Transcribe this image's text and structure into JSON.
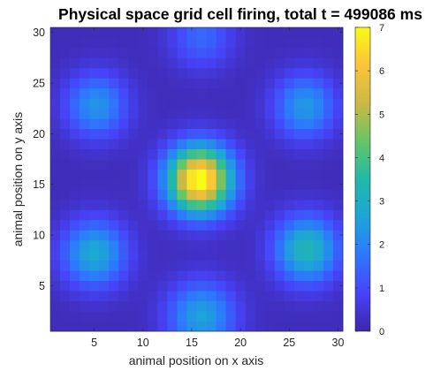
{
  "chart_data": {
    "type": "heatmap",
    "title": "Physical space grid cell firing, total t = 499086 ms",
    "xlabel": "animal position on x axis",
    "ylabel": "animal position on y axis",
    "x_ticks": [
      5,
      10,
      15,
      20,
      25,
      30
    ],
    "y_ticks": [
      5,
      10,
      15,
      20,
      25,
      30
    ],
    "xlim": [
      0.5,
      30.5
    ],
    "ylim": [
      0.5,
      30.5
    ],
    "y_direction": "normal",
    "grid_size": [
      30,
      30
    ],
    "colormap": "parula",
    "colorbar": {
      "limits": [
        0,
        7
      ],
      "ticks": [
        0,
        1,
        2,
        3,
        4,
        5,
        6,
        7
      ]
    },
    "baseline_value": 0.2,
    "firing_fields": [
      {
        "x": 15.8,
        "y": 15.5,
        "peak": 7.0,
        "sigma": 2.3
      },
      {
        "x": 5.2,
        "y": 22.8,
        "peak": 2.1,
        "sigma": 2.2
      },
      {
        "x": 26.6,
        "y": 22.7,
        "peak": 2.2,
        "sigma": 2.2
      },
      {
        "x": 5.0,
        "y": 8.2,
        "peak": 2.6,
        "sigma": 2.3
      },
      {
        "x": 26.8,
        "y": 8.6,
        "peak": 3.1,
        "sigma": 2.3
      },
      {
        "x": 16.0,
        "y": 2.0,
        "peak": 2.4,
        "sigma": 2.4
      },
      {
        "x": 16.0,
        "y": 29.6,
        "peak": 1.3,
        "sigma": 2.2
      }
    ],
    "grid": false,
    "legend": "none"
  }
}
